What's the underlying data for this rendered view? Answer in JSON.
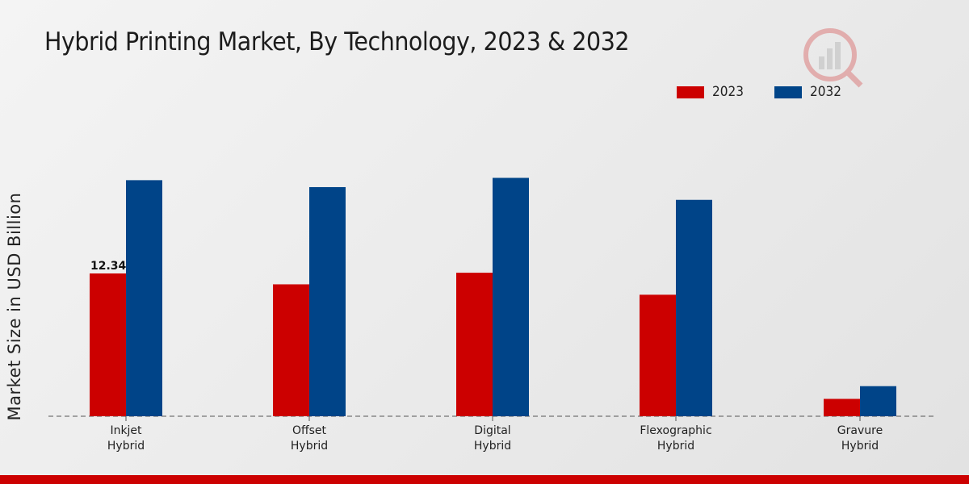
{
  "chart_data": {
    "type": "bar",
    "title": "Hybrid Printing Market, By Technology, 2023 & 2032",
    "xlabel": "",
    "ylabel": "Market Size in USD Billion",
    "categories": [
      [
        "Inkjet",
        "Hybrid"
      ],
      [
        "Offset",
        "Hybrid"
      ],
      [
        "Digital",
        "Hybrid"
      ],
      [
        "Flexographic",
        "Hybrid"
      ],
      [
        "Gravure",
        "Hybrid"
      ]
    ],
    "series": [
      {
        "name": "2023",
        "color": "#cc0000",
        "values": [
          12.34,
          11.4,
          12.4,
          10.5,
          1.5
        ]
      },
      {
        "name": "2032",
        "color": "#004488",
        "values": [
          20.4,
          19.8,
          20.6,
          18.7,
          2.6
        ]
      }
    ],
    "data_labels": [
      {
        "series": 0,
        "index": 0,
        "text": "12.34"
      }
    ],
    "ylim": [
      0,
      29
    ],
    "grid": false,
    "legend": "top-right"
  }
}
